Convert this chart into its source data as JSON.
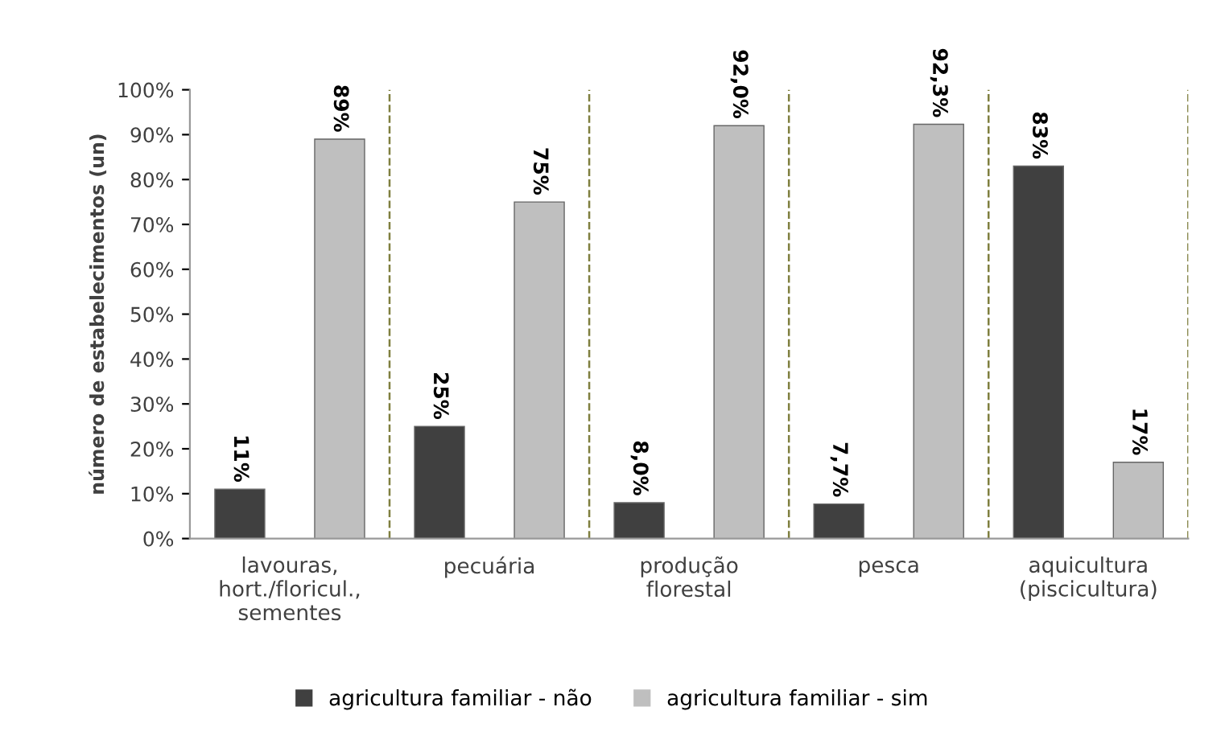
{
  "chart_data": {
    "type": "bar",
    "ylabel": "número de estabelecimentos (un)",
    "categories": [
      "lavouras,\nhort./floricul.,\nsementes",
      "pecuária",
      "produção\nflorestal",
      "pesca",
      "aquicultura\n(piscicultura)"
    ],
    "series": [
      {
        "name": "agricultura familiar - não",
        "color": "#404040",
        "values": [
          11,
          25,
          8.0,
          7.7,
          83
        ],
        "value_labels": [
          "11%",
          "25%",
          "8,0%",
          "7,7%",
          "83%"
        ]
      },
      {
        "name": "agricultura familiar - sim",
        "color": "#bfbfbf",
        "values": [
          89,
          75,
          92.0,
          92.3,
          17
        ],
        "value_labels": [
          "89%",
          "75%",
          "92,0%",
          "92,3%",
          "17%"
        ]
      }
    ],
    "ylim": [
      0,
      100
    ],
    "yticks": [
      {
        "value": 0,
        "label": "0%"
      },
      {
        "value": 10,
        "label": "10%"
      },
      {
        "value": 20,
        "label": "20%"
      },
      {
        "value": 30,
        "label": "30%"
      },
      {
        "value": 40,
        "label": "40%"
      },
      {
        "value": 50,
        "label": "50%"
      },
      {
        "value": 60,
        "label": "60%"
      },
      {
        "value": 70,
        "label": "70%"
      },
      {
        "value": 80,
        "label": "80%"
      },
      {
        "value": 90,
        "label": "90%"
      },
      {
        "value": 100,
        "label": "100%"
      }
    ],
    "grid": false,
    "legend": "bottom"
  }
}
